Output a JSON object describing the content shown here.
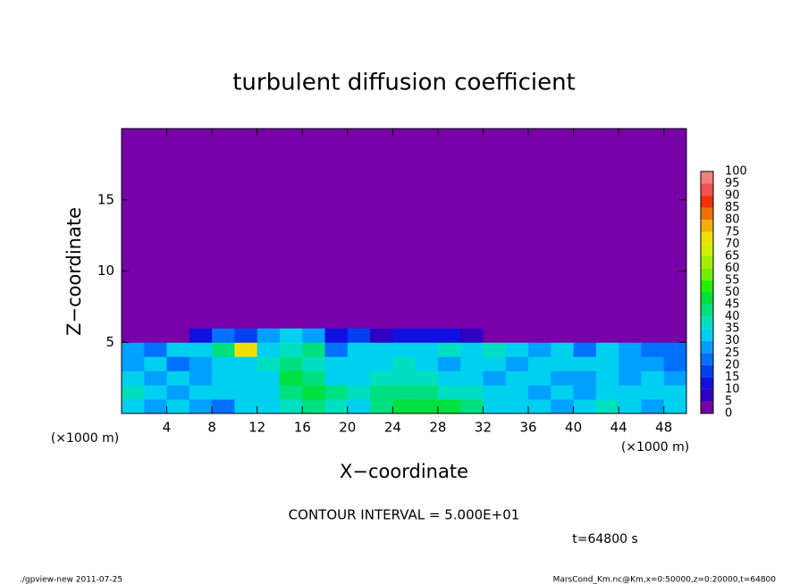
{
  "chart_data": {
    "type": "heatmap",
    "title": "turbulent diffusion coefficient",
    "x_label": "X−coordinate",
    "y_label": "Z−coordinate",
    "x_unit": "(×1000 m)",
    "y_unit": "(×1000 m)",
    "annotation": "CONTOUR INTERVAL = 5.000E+01",
    "time_label": "t=64800 s",
    "footer_left": "./gpview-new  2011-07-25",
    "footer_right": "MarsCond_Km.nc@Km,x=0:50000,z=0:20000,t=64800",
    "xlim": [
      0,
      50
    ],
    "ylim": [
      0,
      20
    ],
    "xticks": [
      4,
      8,
      12,
      16,
      20,
      24,
      28,
      32,
      36,
      40,
      44,
      48
    ],
    "yticks": [
      5,
      10,
      15
    ],
    "xbins": [
      0,
      2,
      4,
      6,
      8,
      10,
      12,
      14,
      16,
      18,
      20,
      22,
      24,
      26,
      28,
      30,
      32,
      34,
      36,
      38,
      40,
      42,
      44,
      46,
      48,
      50
    ],
    "ybins": [
      0,
      1,
      2,
      3,
      4,
      5,
      6,
      20
    ],
    "values": [
      [
        30,
        25,
        30,
        25,
        20,
        30,
        30,
        35,
        40,
        35,
        30,
        40,
        45,
        45,
        45,
        40,
        30,
        30,
        30,
        25,
        30,
        35,
        30,
        25,
        30
      ],
      [
        35,
        30,
        25,
        30,
        30,
        30,
        30,
        40,
        45,
        40,
        35,
        40,
        40,
        40,
        35,
        35,
        30,
        30,
        25,
        30,
        25,
        30,
        30,
        30,
        30
      ],
      [
        30,
        25,
        30,
        25,
        30,
        30,
        30,
        45,
        40,
        30,
        30,
        35,
        35,
        35,
        30,
        30,
        25,
        30,
        30,
        25,
        25,
        30,
        25,
        30,
        25
      ],
      [
        25,
        30,
        20,
        25,
        30,
        30,
        35,
        40,
        35,
        30,
        30,
        30,
        35,
        30,
        25,
        30,
        30,
        25,
        30,
        30,
        30,
        30,
        25,
        25,
        20
      ],
      [
        25,
        20,
        30,
        30,
        40,
        70,
        30,
        35,
        40,
        20,
        30,
        30,
        30,
        30,
        35,
        30,
        35,
        30,
        25,
        30,
        20,
        30,
        25,
        20,
        20
      ],
      [
        0,
        0,
        0,
        10,
        20,
        15,
        25,
        30,
        25,
        10,
        15,
        5,
        10,
        10,
        10,
        5,
        0,
        0,
        0,
        0,
        0,
        0,
        0,
        0,
        0
      ],
      [
        0,
        0,
        0,
        0,
        0,
        0,
        0,
        0,
        0,
        0,
        0,
        0,
        0,
        0,
        0,
        0,
        0,
        0,
        0,
        0,
        0,
        0,
        0,
        0,
        0
      ]
    ],
    "levels": [
      0,
      5,
      10,
      15,
      20,
      25,
      30,
      35,
      40,
      45,
      50,
      55,
      60,
      65,
      70,
      75,
      80,
      85,
      90,
      95,
      100
    ],
    "colors": [
      "#7800a8",
      "#3000c0",
      "#1010e0",
      "#0040f0",
      "#0070ff",
      "#00a0ff",
      "#00d0f0",
      "#00e0c0",
      "#00e080",
      "#00e040",
      "#20f000",
      "#70f000",
      "#a0f000",
      "#d0f000",
      "#f0e000",
      "#f0b000",
      "#f07000",
      "#f03000",
      "#f05050",
      "#f08080"
    ]
  }
}
